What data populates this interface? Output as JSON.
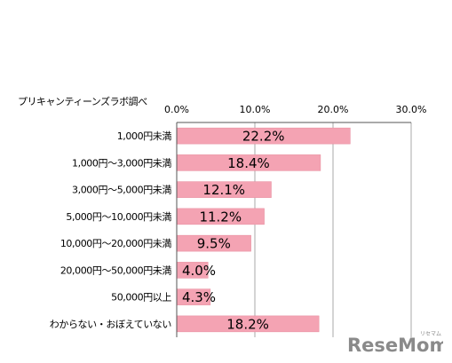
{
  "source_note": "プリキャンティーンズラボ調べ",
  "watermark": {
    "main": "ReseMom",
    "kana": "リセマム"
  },
  "colors": {
    "bar": "#f4a3b3",
    "bar_stroke": "#e68a9c",
    "axis": "#555555",
    "grid": "#aaaaaa",
    "watermark": "#8a8a8a"
  },
  "chart_data": {
    "type": "bar",
    "orientation": "horizontal",
    "categories": [
      "1,000円未満",
      "1,000円～3,000円未満",
      "3,000円～5,000円未満",
      "5,000円～10,000円未満",
      "10,000円～20,000円未満",
      "20,000円～50,000円未満",
      "50,000円以上",
      "わからない・おぼえていない"
    ],
    "values": [
      22.2,
      18.4,
      12.1,
      11.2,
      9.5,
      4.0,
      4.3,
      18.2
    ],
    "value_labels": [
      "22.2%",
      "18.4%",
      "12.1%",
      "11.2%",
      "9.5%",
      "4.0%",
      "4.3%",
      "18.2%"
    ],
    "xlim": [
      0,
      30
    ],
    "ticks": [
      "0.0%",
      "10.0%",
      "20.0%",
      "30.0%"
    ],
    "tick_values": [
      0,
      10,
      20,
      30
    ],
    "axis_position": "top",
    "grid": true
  }
}
